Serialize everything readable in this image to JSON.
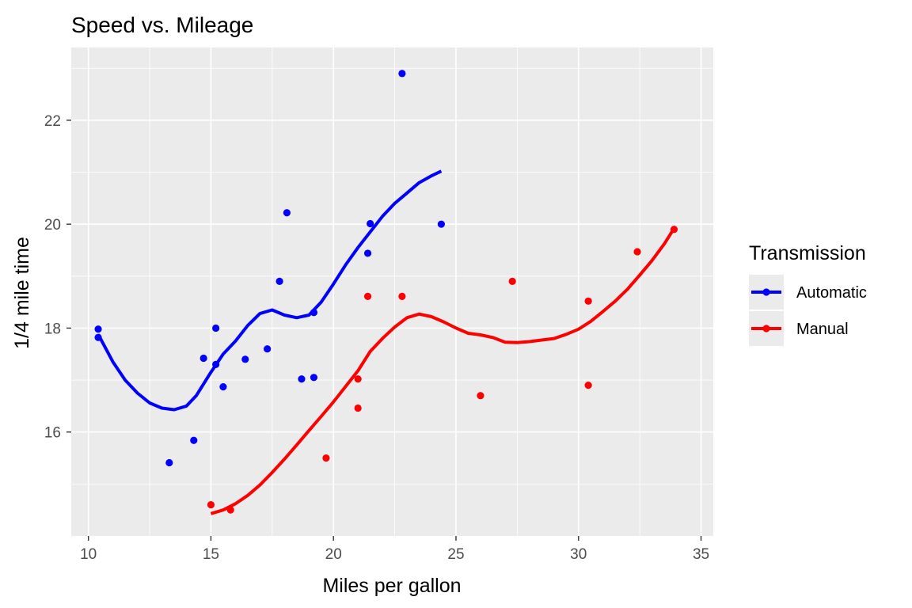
{
  "chart_data": {
    "type": "scatter",
    "title": "Speed vs. Mileage",
    "xlabel": "Miles per gallon",
    "ylabel": "1/4 mile time",
    "xlim": [
      9.3,
      35.5
    ],
    "ylim": [
      14.0,
      23.4
    ],
    "x_ticks": [
      10,
      15,
      20,
      25,
      30,
      35
    ],
    "y_ticks": [
      16,
      18,
      20,
      22
    ],
    "x_tick_labels": [
      "10",
      "15",
      "20",
      "25",
      "30",
      "35"
    ],
    "y_tick_labels": [
      "16",
      "18",
      "20",
      "22"
    ],
    "grid": true,
    "legend": {
      "title": "Transmission",
      "position": "right"
    },
    "series": [
      {
        "name": "Automatic",
        "color": "#0000ff",
        "points": [
          [
            10.4,
            17.98
          ],
          [
            10.4,
            17.82
          ],
          [
            13.3,
            15.41
          ],
          [
            14.3,
            15.84
          ],
          [
            14.7,
            17.42
          ],
          [
            15.2,
            18.0
          ],
          [
            15.2,
            17.3
          ],
          [
            15.5,
            16.87
          ],
          [
            16.4,
            17.4
          ],
          [
            17.3,
            17.6
          ],
          [
            17.8,
            18.9
          ],
          [
            18.1,
            20.22
          ],
          [
            18.7,
            17.02
          ],
          [
            19.2,
            18.3
          ],
          [
            19.2,
            17.05
          ],
          [
            21.4,
            19.44
          ],
          [
            21.5,
            20.01
          ],
          [
            22.8,
            22.9
          ],
          [
            24.4,
            20.0
          ]
        ],
        "smooth": [
          [
            10.4,
            17.88
          ],
          [
            11.0,
            17.35
          ],
          [
            11.5,
            17.0
          ],
          [
            12.0,
            16.75
          ],
          [
            12.5,
            16.56
          ],
          [
            13.0,
            16.46
          ],
          [
            13.5,
            16.43
          ],
          [
            14.0,
            16.5
          ],
          [
            14.4,
            16.7
          ],
          [
            15.0,
            17.15
          ],
          [
            15.5,
            17.5
          ],
          [
            16.0,
            17.75
          ],
          [
            16.5,
            18.05
          ],
          [
            17.0,
            18.28
          ],
          [
            17.5,
            18.35
          ],
          [
            18.0,
            18.25
          ],
          [
            18.5,
            18.2
          ],
          [
            19.0,
            18.25
          ],
          [
            19.5,
            18.5
          ],
          [
            20.0,
            18.85
          ],
          [
            20.5,
            19.22
          ],
          [
            21.0,
            19.55
          ],
          [
            21.5,
            19.85
          ],
          [
            22.0,
            20.15
          ],
          [
            22.5,
            20.4
          ],
          [
            23.0,
            20.6
          ],
          [
            23.5,
            20.8
          ],
          [
            24.0,
            20.93
          ],
          [
            24.4,
            21.02
          ]
        ]
      },
      {
        "name": "Manual",
        "color": "#ff0000",
        "points": [
          [
            15.0,
            14.6
          ],
          [
            15.8,
            14.5
          ],
          [
            19.7,
            15.5
          ],
          [
            21.0,
            16.46
          ],
          [
            21.0,
            17.02
          ],
          [
            21.4,
            18.61
          ],
          [
            22.8,
            18.61
          ],
          [
            26.0,
            16.7
          ],
          [
            27.3,
            18.9
          ],
          [
            30.4,
            18.52
          ],
          [
            30.4,
            16.9
          ],
          [
            32.4,
            19.47
          ],
          [
            33.9,
            19.9
          ]
        ],
        "smooth": [
          [
            15.0,
            14.43
          ],
          [
            15.5,
            14.5
          ],
          [
            16.0,
            14.62
          ],
          [
            16.5,
            14.78
          ],
          [
            17.0,
            14.98
          ],
          [
            17.5,
            15.22
          ],
          [
            18.0,
            15.48
          ],
          [
            18.5,
            15.75
          ],
          [
            19.0,
            16.03
          ],
          [
            19.5,
            16.3
          ],
          [
            20.0,
            16.58
          ],
          [
            20.5,
            16.88
          ],
          [
            21.0,
            17.18
          ],
          [
            21.5,
            17.55
          ],
          [
            22.0,
            17.8
          ],
          [
            22.5,
            18.02
          ],
          [
            23.0,
            18.2
          ],
          [
            23.5,
            18.27
          ],
          [
            24.0,
            18.22
          ],
          [
            24.5,
            18.12
          ],
          [
            25.0,
            18.0
          ],
          [
            25.5,
            17.9
          ],
          [
            26.0,
            17.87
          ],
          [
            26.5,
            17.82
          ],
          [
            27.0,
            17.73
          ],
          [
            27.5,
            17.72
          ],
          [
            28.0,
            17.74
          ],
          [
            28.5,
            17.77
          ],
          [
            29.0,
            17.8
          ],
          [
            29.5,
            17.88
          ],
          [
            30.0,
            17.98
          ],
          [
            30.5,
            18.13
          ],
          [
            31.0,
            18.32
          ],
          [
            31.5,
            18.52
          ],
          [
            32.0,
            18.75
          ],
          [
            32.5,
            19.02
          ],
          [
            33.0,
            19.3
          ],
          [
            33.5,
            19.62
          ],
          [
            33.9,
            19.92
          ]
        ]
      }
    ]
  }
}
